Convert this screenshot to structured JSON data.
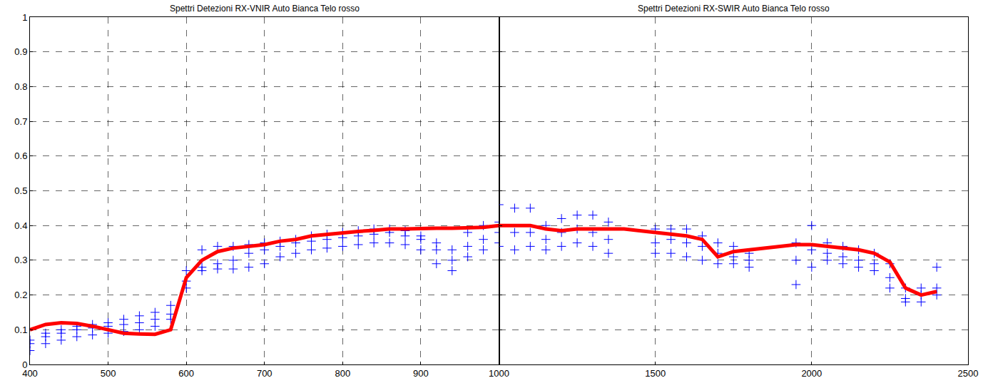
{
  "chart_data": [
    {
      "type": "scatter",
      "title": "Spettri Detezioni RX-VNIR Auto Bianca Telo rosso",
      "x": [
        400,
        420,
        440,
        460,
        480,
        500,
        520,
        540,
        560,
        580,
        600,
        620,
        640,
        660,
        680,
        700,
        720,
        740,
        760,
        780,
        800,
        820,
        840,
        860,
        880,
        900,
        920,
        940,
        960,
        980,
        1000
      ],
      "series": [
        {
          "type": "scatter",
          "color": "#0000ff",
          "marker": "cross",
          "values": [
            0.07,
            0.09,
            0.1,
            0.11,
            0.115,
            0.12,
            0.13,
            0.14,
            0.15,
            0.17,
            0.27,
            0.33,
            0.34,
            0.34,
            0.345,
            0.35,
            0.355,
            0.36,
            0.37,
            0.375,
            0.38,
            0.385,
            0.39,
            0.39,
            0.385,
            0.37,
            0.35,
            0.33,
            0.38,
            0.4,
            0.41
          ]
        },
        {
          "type": "scatter",
          "color": "#0000ff",
          "marker": "cross",
          "values": [
            0.06,
            0.08,
            0.09,
            0.1,
            0.105,
            0.11,
            0.115,
            0.12,
            0.13,
            0.145,
            0.24,
            0.28,
            0.29,
            0.3,
            0.32,
            0.33,
            0.34,
            0.35,
            0.355,
            0.36,
            0.365,
            0.37,
            0.375,
            0.38,
            0.37,
            0.36,
            0.33,
            0.3,
            0.34,
            0.36,
            0.38
          ]
        },
        {
          "type": "scatter",
          "color": "#0000ff",
          "marker": "cross",
          "values": [
            0.04,
            0.06,
            0.07,
            0.08,
            0.085,
            0.09,
            0.095,
            0.1,
            0.11,
            0.13,
            0.22,
            0.27,
            0.275,
            0.275,
            0.28,
            0.29,
            0.31,
            0.32,
            0.33,
            0.335,
            0.34,
            0.345,
            0.35,
            0.35,
            0.345,
            0.33,
            0.29,
            0.27,
            0.31,
            0.33,
            0.35
          ]
        },
        {
          "type": "line",
          "color": "#ff0000",
          "line_style": "solid",
          "values": [
            0.1,
            0.115,
            0.12,
            0.118,
            0.11,
            0.1,
            0.09,
            0.088,
            0.087,
            0.1,
            0.25,
            0.3,
            0.325,
            0.335,
            0.34,
            0.345,
            0.355,
            0.36,
            0.37,
            0.375,
            0.38,
            0.383,
            0.386,
            0.39,
            0.39,
            0.392,
            0.392,
            0.392,
            0.393,
            0.395,
            0.4
          ]
        }
      ],
      "xlim": [
        400,
        1000
      ],
      "xticks": [
        400,
        500,
        600,
        700,
        800,
        900
      ],
      "ylim": [
        0,
        1
      ],
      "yticks": [
        0,
        0.1,
        0.2,
        0.3,
        0.4,
        0.5,
        0.6,
        0.7,
        0.8,
        0.9,
        1
      ],
      "grid": true
    },
    {
      "type": "scatter",
      "title": "Spettri Detezioni RX-SWIR Auto Bianca Telo rosso",
      "x": [
        1000,
        1050,
        1100,
        1150,
        1200,
        1250,
        1300,
        1350,
        1400,
        1450,
        1500,
        1550,
        1600,
        1650,
        1700,
        1750,
        1800,
        1850,
        1900,
        1950,
        2000,
        2050,
        2100,
        2150,
        2200,
        2250,
        2300,
        2350,
        2400
      ],
      "series": [
        {
          "type": "scatter",
          "color": "#0000ff",
          "marker": "cross",
          "values": [
            0.46,
            0.45,
            0.45,
            0.4,
            0.42,
            0.43,
            0.43,
            0.41,
            null,
            null,
            0.39,
            0.39,
            0.39,
            0.37,
            0.35,
            0.34,
            0.32,
            null,
            null,
            0.35,
            0.4,
            0.35,
            0.34,
            0.33,
            0.32,
            0.29,
            0.22,
            0.22,
            0.28
          ]
        },
        {
          "type": "scatter",
          "color": "#0000ff",
          "marker": "cross",
          "values": [
            0.4,
            0.38,
            0.38,
            0.36,
            0.38,
            0.39,
            0.38,
            0.36,
            null,
            null,
            0.35,
            0.36,
            0.35,
            0.34,
            0.32,
            0.31,
            0.3,
            null,
            null,
            0.3,
            0.33,
            0.32,
            0.31,
            0.3,
            0.29,
            0.25,
            0.19,
            0.2,
            0.22
          ]
        },
        {
          "type": "scatter",
          "color": "#0000ff",
          "marker": "cross",
          "values": [
            0.34,
            0.33,
            0.34,
            0.33,
            0.34,
            0.35,
            0.34,
            0.32,
            null,
            null,
            0.32,
            0.32,
            0.31,
            0.3,
            0.29,
            0.29,
            0.28,
            null,
            null,
            0.23,
            0.28,
            0.3,
            0.29,
            0.28,
            0.27,
            0.22,
            0.18,
            0.18,
            0.2
          ]
        },
        {
          "type": "line",
          "color": "#ff0000",
          "line_style": "solid",
          "values": [
            0.4,
            0.4,
            0.4,
            0.39,
            0.385,
            0.39,
            0.39,
            0.39,
            0.39,
            0.385,
            0.38,
            0.375,
            0.37,
            0.36,
            0.31,
            0.325,
            0.33,
            0.335,
            0.34,
            0.345,
            0.345,
            0.34,
            0.335,
            0.33,
            0.32,
            0.295,
            0.22,
            0.2,
            0.21
          ]
        }
      ],
      "xlim": [
        1000,
        2500
      ],
      "xticks": [
        1000,
        1500,
        2000,
        2500
      ],
      "ylim": [
        0,
        1
      ],
      "yticks": [
        0,
        0.1,
        0.2,
        0.3,
        0.4,
        0.5,
        0.6,
        0.7,
        0.8,
        0.9,
        1
      ],
      "grid": true,
      "tick_labels": "x"
    }
  ]
}
